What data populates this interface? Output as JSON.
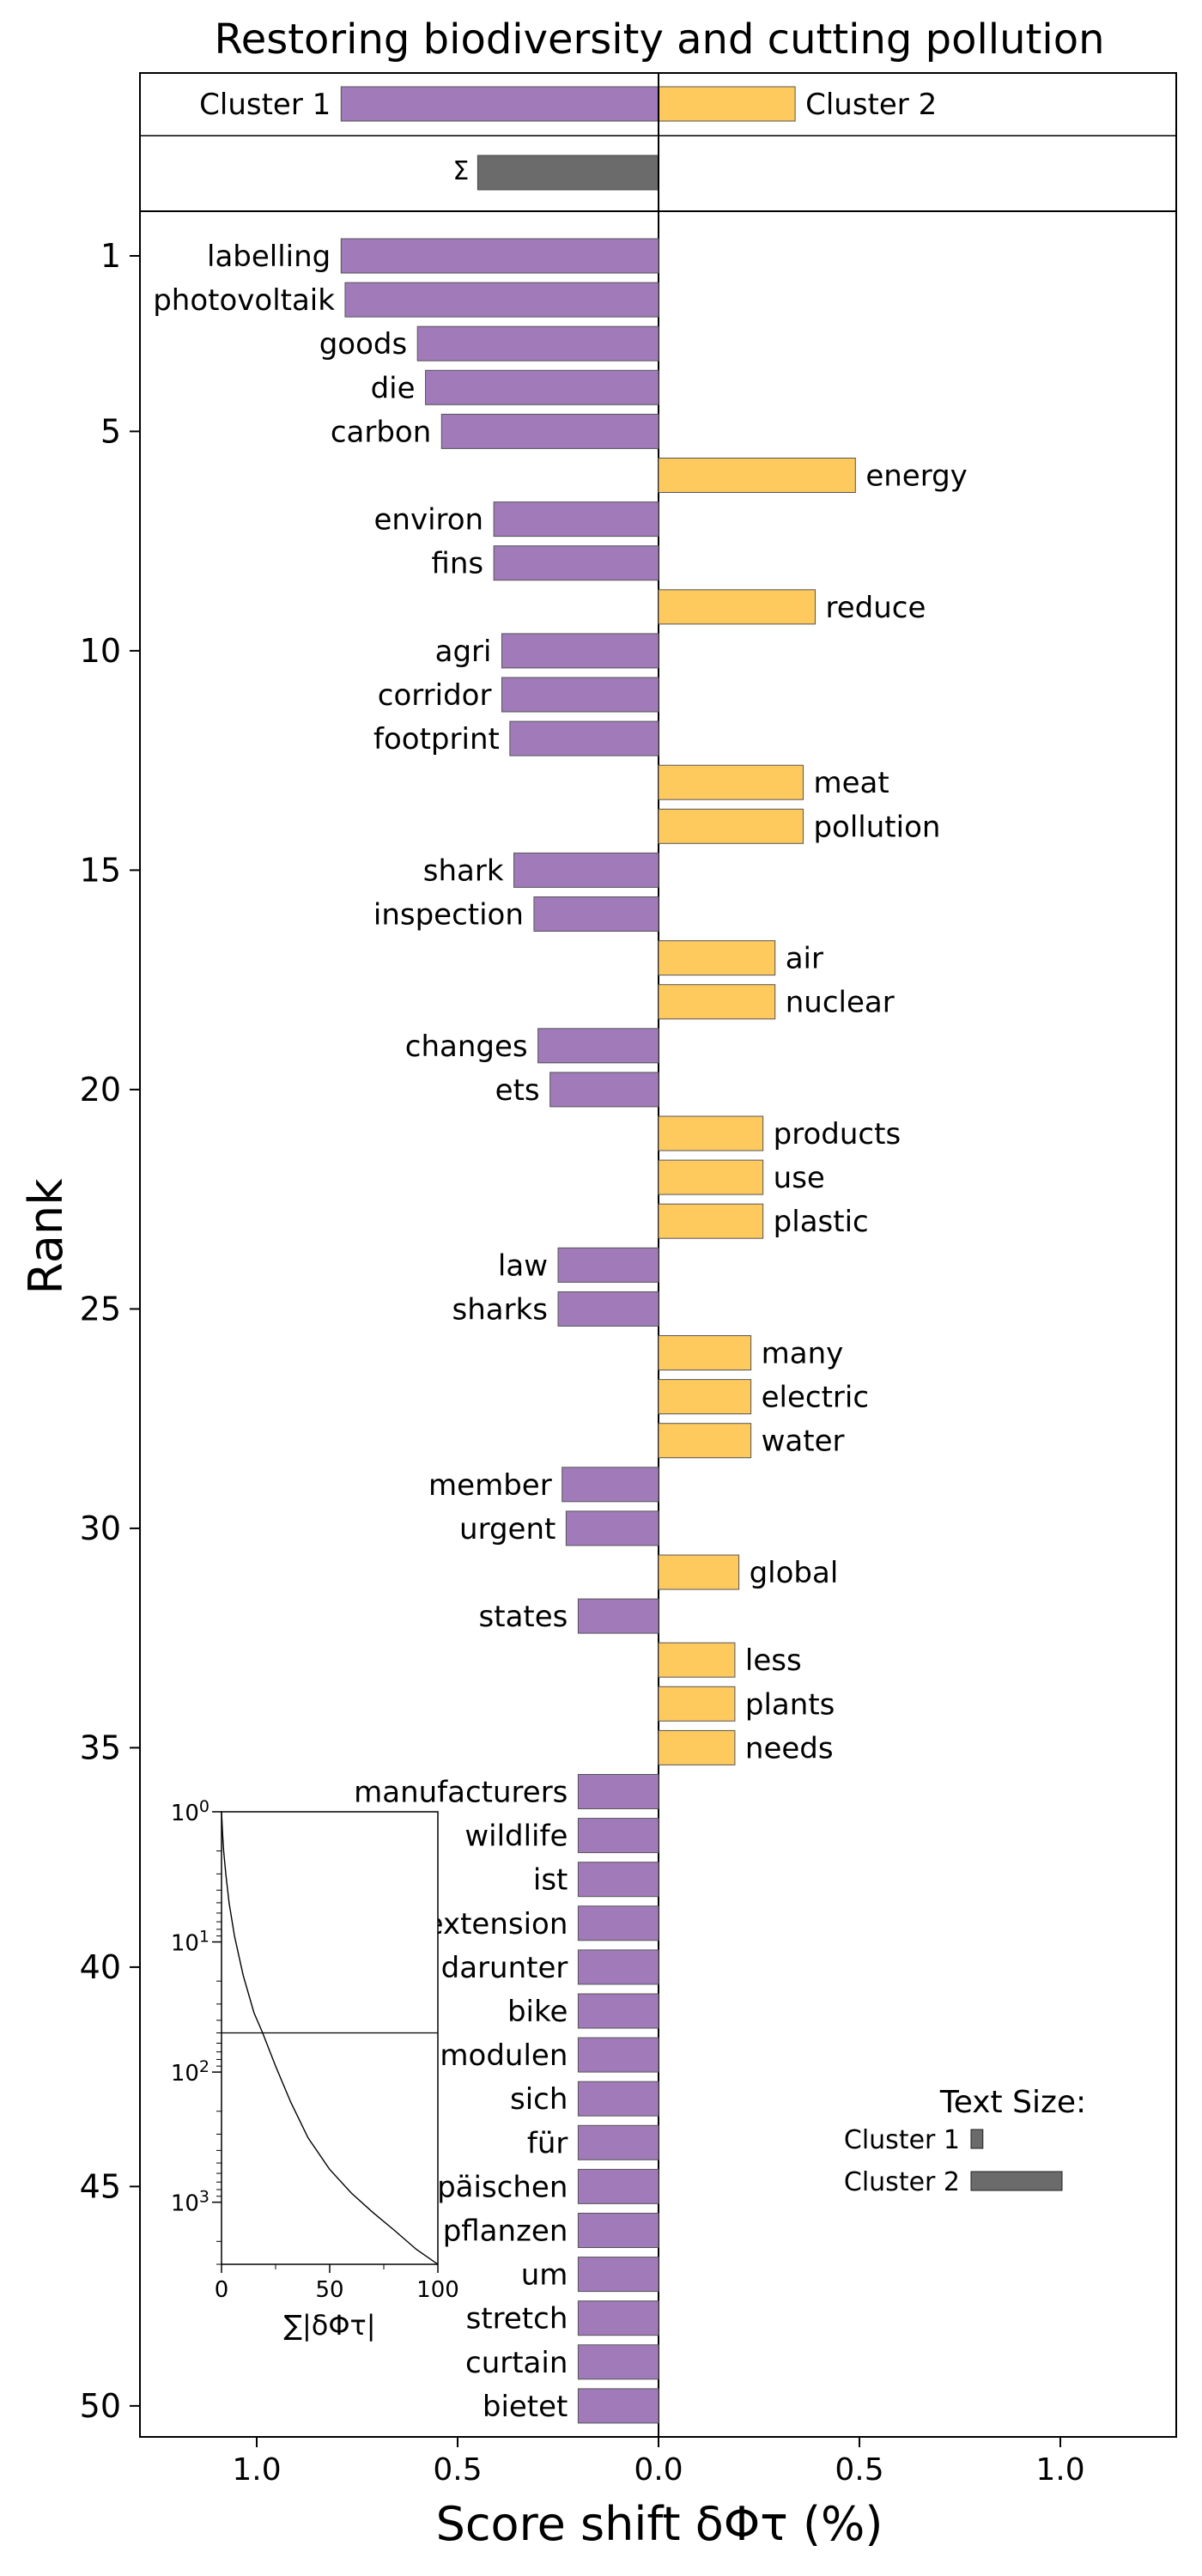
{
  "chart_data": {
    "type": "bar",
    "orientation": "horizontal-diverging",
    "title": "Restoring biodiversity and cutting pollution",
    "xlabel": "Score shift δΦτ (%)",
    "ylabel": "Rank",
    "xlim": [
      -1.3,
      1.3
    ],
    "x_ticks": [
      {
        "value": -1.0,
        "label": "1.0"
      },
      {
        "value": -0.5,
        "label": "0.5"
      },
      {
        "value": 0.0,
        "label": "0.0"
      },
      {
        "value": 0.5,
        "label": "0.5"
      },
      {
        "value": 1.0,
        "label": "1.0"
      }
    ],
    "y_ticks": [
      {
        "rank": 1,
        "label": "1"
      },
      {
        "rank": 5,
        "label": "5"
      },
      {
        "rank": 10,
        "label": "10"
      },
      {
        "rank": 15,
        "label": "15"
      },
      {
        "rank": 20,
        "label": "20"
      },
      {
        "rank": 25,
        "label": "25"
      },
      {
        "rank": 30,
        "label": "30"
      },
      {
        "rank": 35,
        "label": "35"
      },
      {
        "rank": 40,
        "label": "40"
      },
      {
        "rank": 45,
        "label": "45"
      },
      {
        "rank": 50,
        "label": "50"
      }
    ],
    "colors": {
      "cluster1": "#a07ab9",
      "cluster2": "#fec95d",
      "sum": "#6b6b6b"
    },
    "summary": {
      "cluster1_label": "Cluster 1",
      "cluster2_label": "Cluster 2",
      "cluster1_value": -0.79,
      "cluster2_value": 0.34,
      "sum_label": "Σ",
      "sum_value": -0.45
    },
    "bars": [
      {
        "rank": 1,
        "word": "labelling",
        "value": -0.79
      },
      {
        "rank": 2,
        "word": "photovoltaik",
        "value": -0.78
      },
      {
        "rank": 3,
        "word": "goods",
        "value": -0.6
      },
      {
        "rank": 4,
        "word": "die",
        "value": -0.58
      },
      {
        "rank": 5,
        "word": "carbon",
        "value": -0.54
      },
      {
        "rank": 6,
        "word": "energy",
        "value": 0.49
      },
      {
        "rank": 7,
        "word": "environ",
        "value": -0.41
      },
      {
        "rank": 8,
        "word": "fins",
        "value": -0.41
      },
      {
        "rank": 9,
        "word": "reduce",
        "value": 0.39
      },
      {
        "rank": 10,
        "word": "agri",
        "value": -0.39
      },
      {
        "rank": 11,
        "word": "corridor",
        "value": -0.39
      },
      {
        "rank": 12,
        "word": "footprint",
        "value": -0.37
      },
      {
        "rank": 13,
        "word": "meat",
        "value": 0.36
      },
      {
        "rank": 14,
        "word": "pollution",
        "value": 0.36
      },
      {
        "rank": 15,
        "word": "shark",
        "value": -0.36
      },
      {
        "rank": 16,
        "word": "inspection",
        "value": -0.31
      },
      {
        "rank": 17,
        "word": "air",
        "value": 0.29
      },
      {
        "rank": 18,
        "word": "nuclear",
        "value": 0.29
      },
      {
        "rank": 19,
        "word": "changes",
        "value": -0.3
      },
      {
        "rank": 20,
        "word": "ets",
        "value": -0.27
      },
      {
        "rank": 21,
        "word": "products",
        "value": 0.26
      },
      {
        "rank": 22,
        "word": "use",
        "value": 0.26
      },
      {
        "rank": 23,
        "word": "plastic",
        "value": 0.26
      },
      {
        "rank": 24,
        "word": "law",
        "value": -0.25
      },
      {
        "rank": 25,
        "word": "sharks",
        "value": -0.25
      },
      {
        "rank": 26,
        "word": "many",
        "value": 0.23
      },
      {
        "rank": 27,
        "word": "electric",
        "value": 0.23
      },
      {
        "rank": 28,
        "word": "water",
        "value": 0.23
      },
      {
        "rank": 29,
        "word": "member",
        "value": -0.24
      },
      {
        "rank": 30,
        "word": "urgent",
        "value": -0.23
      },
      {
        "rank": 31,
        "word": "global",
        "value": 0.2
      },
      {
        "rank": 32,
        "word": "states",
        "value": -0.2
      },
      {
        "rank": 33,
        "word": "less",
        "value": 0.19
      },
      {
        "rank": 34,
        "word": "plants",
        "value": 0.19
      },
      {
        "rank": 35,
        "word": "needs",
        "value": 0.19
      },
      {
        "rank": 36,
        "word": "manufacturers",
        "value": -0.2
      },
      {
        "rank": 37,
        "word": "wildlife",
        "value": -0.2
      },
      {
        "rank": 38,
        "word": "ist",
        "value": -0.2
      },
      {
        "rank": 39,
        "word": "extension",
        "value": -0.2
      },
      {
        "rank": 40,
        "word": "darunter",
        "value": -0.2
      },
      {
        "rank": 41,
        "word": "bike",
        "value": -0.2
      },
      {
        "rank": 42,
        "word": "modulen",
        "value": -0.2
      },
      {
        "rank": 43,
        "word": "sich",
        "value": -0.2
      },
      {
        "rank": 44,
        "word": "für",
        "value": -0.2
      },
      {
        "rank": 45,
        "word": "europäischen",
        "value": -0.2
      },
      {
        "rank": 46,
        "word": "pflanzen",
        "value": -0.2
      },
      {
        "rank": 47,
        "word": "um",
        "value": -0.2
      },
      {
        "rank": 48,
        "word": "stretch",
        "value": -0.2
      },
      {
        "rank": 49,
        "word": "curtain",
        "value": -0.2
      },
      {
        "rank": 50,
        "word": "bietet",
        "value": -0.2
      }
    ],
    "inset": {
      "type": "line",
      "xlabel": "∑|δΦτ|",
      "x_range": [
        0,
        100
      ],
      "x_ticks": [
        {
          "value": 0,
          "label": "0"
        },
        {
          "value": 50,
          "label": "50"
        },
        {
          "value": 100,
          "label": "100"
        }
      ],
      "y_scale": "log",
      "y_range_rank": [
        1,
        3000
      ],
      "y_ticks": [
        {
          "rank": 1,
          "label": "10",
          "exponent": "0"
        },
        {
          "rank": 10,
          "label": "10",
          "exponent": "1"
        },
        {
          "rank": 100,
          "label": "10",
          "exponent": "2"
        },
        {
          "rank": 1000,
          "label": "10",
          "exponent": "3"
        }
      ],
      "reference_rank": 50,
      "curve": [
        {
          "x": 0,
          "rank": 1
        },
        {
          "x": 0.5,
          "rank": 1.5
        },
        {
          "x": 1,
          "rank": 2
        },
        {
          "x": 2,
          "rank": 3
        },
        {
          "x": 3.5,
          "rank": 5
        },
        {
          "x": 6,
          "rank": 9
        },
        {
          "x": 10,
          "rank": 18
        },
        {
          "x": 15,
          "rank": 35
        },
        {
          "x": 19,
          "rank": 50
        },
        {
          "x": 25,
          "rank": 90
        },
        {
          "x": 32,
          "rank": 170
        },
        {
          "x": 40,
          "rank": 320
        },
        {
          "x": 50,
          "rank": 560
        },
        {
          "x": 60,
          "rank": 850
        },
        {
          "x": 70,
          "rank": 1200
        },
        {
          "x": 80,
          "rank": 1650
        },
        {
          "x": 90,
          "rank": 2300
        },
        {
          "x": 100,
          "rank": 3000
        }
      ]
    },
    "text_size_legend": {
      "title": "Text Size:",
      "cluster1_label": "Cluster 1",
      "cluster2_label": "Cluster 2",
      "cluster1_fraction": 0.13,
      "cluster2_fraction": 1.0
    }
  }
}
